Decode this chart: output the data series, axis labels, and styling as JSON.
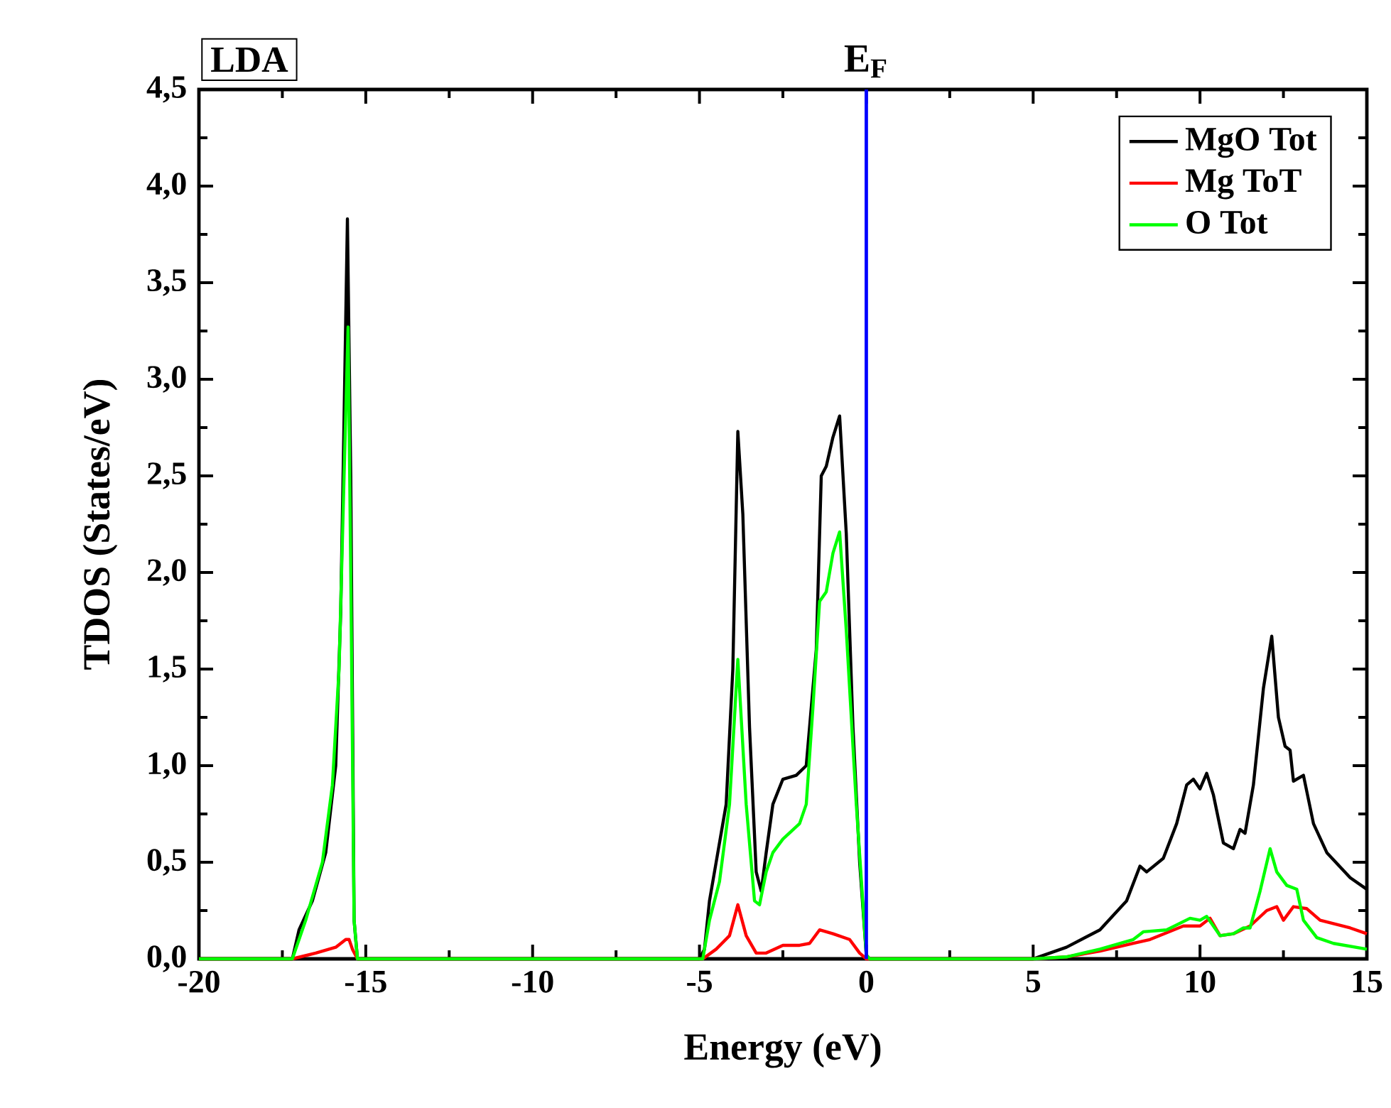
{
  "chart_data": {
    "type": "line",
    "xlabel": "Energy (eV)",
    "ylabel": "TDOS (States/eV)",
    "annotations": [
      "LDA"
    ],
    "xlim": [
      -20,
      15
    ],
    "xticks": [
      -20,
      -15,
      -10,
      -5,
      0,
      5,
      10,
      15
    ],
    "ylim": [
      0,
      4.5
    ],
    "yticks": [
      {
        "value": 0,
        "label": "0,0"
      },
      {
        "value": 0.5,
        "label": "0,5"
      },
      {
        "value": 1,
        "label": "1,0"
      },
      {
        "value": 1.5,
        "label": "1,5"
      },
      {
        "value": 2,
        "label": "2,0"
      },
      {
        "value": 2.5,
        "label": "2,5"
      },
      {
        "value": 3,
        "label": "3,0"
      },
      {
        "value": 3.5,
        "label": "3,5"
      },
      {
        "value": 4,
        "label": "4,0"
      },
      {
        "value": 4.5,
        "label": "4,5"
      }
    ],
    "legend": "top right",
    "grid": false,
    "line_style": "solid",
    "ref_lines": [
      {
        "axis": "x",
        "value": 0,
        "label": "E$_{F}$",
        "color": "#0000ff"
      }
    ],
    "series": [
      {
        "name": "MgO Tot",
        "color": "#000000",
        "x": [
          -20,
          -17.2,
          -17.0,
          -16.6,
          -16.2,
          -15.9,
          -15.75,
          -15.65,
          -15.55,
          -15.45,
          -15.35,
          -15.25,
          -5,
          -4.85,
          -4.7,
          -4.5,
          -4.2,
          -4.0,
          -3.85,
          -3.7,
          -3.5,
          -3.3,
          -3.15,
          -3.0,
          -2.8,
          -2.5,
          -2.1,
          -1.8,
          -1.5,
          -1.35,
          -1.2,
          -1.0,
          -0.8,
          -0.6,
          -0.4,
          -0.2,
          0,
          0.1,
          5,
          5.5,
          6,
          7,
          7.8,
          8.2,
          8.4,
          8.9,
          9.3,
          9.6,
          9.8,
          10.0,
          10.2,
          10.4,
          10.7,
          11.0,
          11.2,
          11.35,
          11.6,
          11.9,
          12.15,
          12.35,
          12.55,
          12.7,
          12.8,
          13.1,
          13.4,
          13.8,
          14.5,
          15
        ],
        "values": [
          0,
          0,
          0.15,
          0.3,
          0.55,
          1.0,
          1.8,
          2.8,
          3.83,
          2.5,
          0.2,
          0,
          0,
          0.05,
          0.3,
          0.5,
          0.8,
          1.5,
          2.73,
          2.3,
          1.2,
          0.45,
          0.35,
          0.55,
          0.8,
          0.93,
          0.95,
          1.0,
          1.6,
          2.5,
          2.55,
          2.7,
          2.81,
          2.2,
          1.2,
          0.5,
          0.02,
          0,
          0,
          0.03,
          0.06,
          0.15,
          0.3,
          0.48,
          0.45,
          0.52,
          0.7,
          0.9,
          0.93,
          0.88,
          0.96,
          0.85,
          0.6,
          0.57,
          0.67,
          0.65,
          0.9,
          1.4,
          1.67,
          1.25,
          1.1,
          1.08,
          0.92,
          0.95,
          0.7,
          0.55,
          0.42,
          0.36
        ]
      },
      {
        "name": "Mg ToT",
        "color": "#ff0000",
        "x": [
          -20,
          -17.2,
          -16.5,
          -15.9,
          -15.6,
          -15.5,
          -15.4,
          -15.25,
          -4.9,
          -4.5,
          -4.1,
          -3.85,
          -3.6,
          -3.3,
          -3.0,
          -2.5,
          -2.0,
          -1.7,
          -1.4,
          -1.0,
          -0.5,
          -0.2,
          0,
          5,
          6,
          7,
          8,
          8.5,
          9.5,
          10,
          10.3,
          10.6,
          11,
          11.5,
          12,
          12.3,
          12.5,
          12.8,
          13.2,
          13.6,
          14.5,
          15
        ],
        "values": [
          0,
          0,
          0.03,
          0.06,
          0.1,
          0.1,
          0.05,
          0,
          0,
          0.05,
          0.12,
          0.28,
          0.12,
          0.03,
          0.03,
          0.07,
          0.07,
          0.08,
          0.15,
          0.13,
          0.1,
          0.03,
          0,
          0,
          0.01,
          0.04,
          0.08,
          0.1,
          0.17,
          0.17,
          0.21,
          0.12,
          0.13,
          0.17,
          0.25,
          0.27,
          0.2,
          0.27,
          0.26,
          0.2,
          0.16,
          0.13
        ]
      },
      {
        "name": "O Tot",
        "color": "#00ff00",
        "x": [
          -20,
          -17.2,
          -16.8,
          -16.3,
          -16,
          -15.8,
          -15.65,
          -15.53,
          -15.45,
          -15.35,
          -15.25,
          -4.9,
          -4.7,
          -4.4,
          -4.1,
          -3.85,
          -3.6,
          -3.35,
          -3.2,
          -3.0,
          -2.8,
          -2.5,
          -2.0,
          -1.8,
          -1.6,
          -1.4,
          -1.2,
          -1.0,
          -0.8,
          -0.6,
          -0.3,
          0,
          0.1,
          5,
          6,
          7,
          8,
          8.3,
          9,
          9.7,
          10,
          10.2,
          10.6,
          11,
          11.3,
          11.5,
          11.8,
          12.1,
          12.3,
          12.6,
          12.9,
          13.1,
          13.5,
          14,
          15
        ],
        "values": [
          0,
          0,
          0.2,
          0.5,
          0.9,
          1.5,
          2.5,
          3.27,
          2.0,
          0.2,
          0,
          0,
          0.2,
          0.4,
          0.8,
          1.55,
          0.8,
          0.3,
          0.28,
          0.45,
          0.55,
          0.62,
          0.7,
          0.8,
          1.3,
          1.85,
          1.9,
          2.1,
          2.21,
          1.7,
          0.8,
          0.02,
          0,
          0,
          0.01,
          0.05,
          0.1,
          0.14,
          0.15,
          0.21,
          0.2,
          0.22,
          0.12,
          0.13,
          0.16,
          0.16,
          0.35,
          0.57,
          0.45,
          0.38,
          0.36,
          0.2,
          0.11,
          0.08,
          0.05
        ]
      }
    ]
  }
}
